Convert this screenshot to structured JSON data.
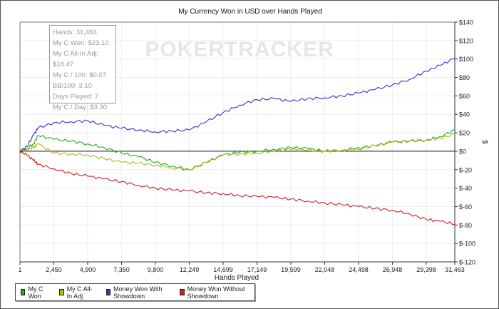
{
  "chart_data": {
    "type": "line",
    "title": "My Currency Won in USD over Hands Played",
    "xlabel": "Hands Played",
    "ylabel": "$",
    "xlim": [
      1,
      31463
    ],
    "ylim": [
      -120,
      140
    ],
    "x_ticks": [
      "1",
      "2,450",
      "4,900",
      "7,350",
      "9,800",
      "12,249",
      "14,699",
      "17,149",
      "19,599",
      "22,048",
      "24,498",
      "26,948",
      "29,398",
      "31,463"
    ],
    "y_ticks": [
      "$140",
      "$120",
      "$100",
      "$80",
      "$60",
      "$40",
      "$20",
      "$0",
      "$-20",
      "$-40",
      "$-60",
      "$-80",
      "$-100",
      "$-120"
    ],
    "grid": true,
    "legend_position": "bottom-left",
    "x": [
      1,
      500,
      1000,
      1300,
      2450,
      3700,
      4900,
      6100,
      7350,
      8600,
      9800,
      11000,
      12249,
      13500,
      14699,
      15900,
      17149,
      18400,
      19599,
      20800,
      22048,
      23300,
      24498,
      25700,
      26948,
      28200,
      29398,
      30400,
      31463
    ],
    "series": [
      {
        "name": "My C Won",
        "color": "#22aa22",
        "values": [
          0,
          3,
          8,
          17,
          13,
          11,
          8,
          4,
          -2,
          -6,
          -12,
          -16,
          -20,
          -12,
          -4,
          -1,
          0,
          2,
          4,
          3,
          0,
          1,
          4,
          6,
          10,
          11,
          12,
          16,
          23.1
        ]
      },
      {
        "name": "My C All-In Adj",
        "color": "#b5b520",
        "values": [
          0,
          2,
          4,
          8,
          -2,
          -3,
          -4,
          -8,
          -12,
          -13,
          -15,
          -18,
          -20,
          -12,
          -4,
          -3,
          -2,
          0,
          2,
          1,
          0,
          1,
          2,
          6,
          10,
          11,
          12,
          14,
          18.47
        ]
      },
      {
        "name": "Money Won With Showdown",
        "color": "#3333cc",
        "values": [
          0,
          5,
          18,
          25,
          31,
          32,
          33,
          28,
          25,
          23,
          21,
          22,
          23,
          32,
          42,
          50,
          56,
          57,
          54,
          57,
          58,
          60,
          63,
          67,
          72,
          78,
          87,
          93,
          101
        ]
      },
      {
        "name": "Money Won Without Showdown",
        "color": "#cc2222",
        "values": [
          0,
          -4,
          -10,
          -14,
          -19,
          -24,
          -27,
          -30,
          -33,
          -37,
          -40,
          -42,
          -43,
          -45,
          -46,
          -48,
          -49,
          -50,
          -52,
          -54,
          -56,
          -58,
          -60,
          -62,
          -64,
          -68,
          -74,
          -76,
          -79
        ]
      }
    ]
  },
  "tooltip": {
    "lines": [
      "Hands: 31,463",
      "My C Won: $23.10",
      "My C All-In Adj: $18.47",
      "My C / 100: $0.07",
      "BB/100: 3.10",
      "Days Played: 7",
      "My C / Day: $3.30"
    ]
  },
  "watermark": "POKERTRACKER"
}
